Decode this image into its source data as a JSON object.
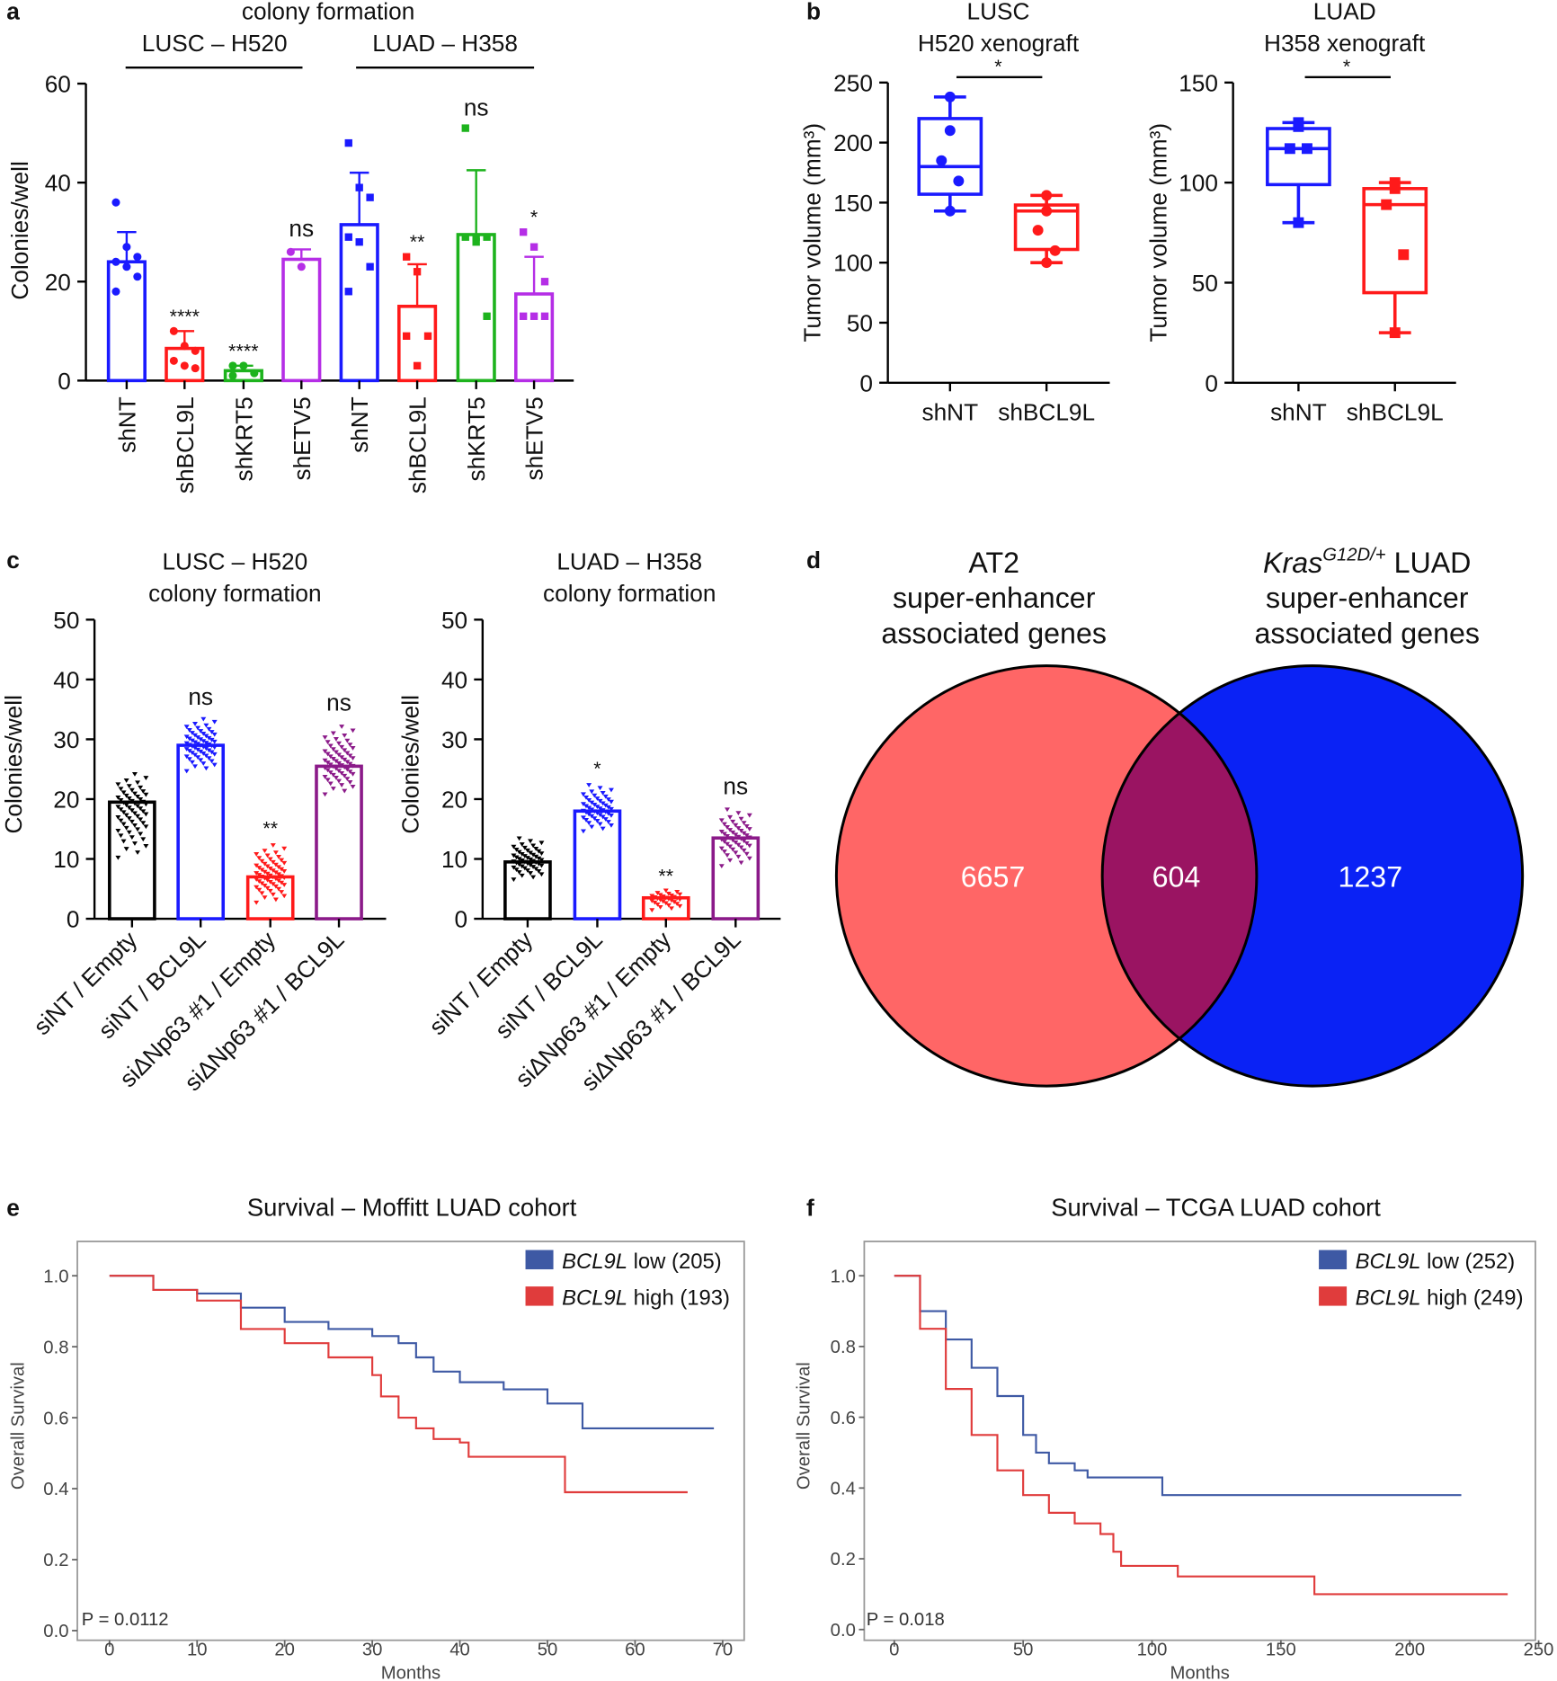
{
  "panel_labels": {
    "a": "a",
    "b": "b",
    "c": "c",
    "d": "d",
    "e": "e",
    "f": "f"
  },
  "colors": {
    "blue": "#1a1aff",
    "red": "#ff1a1a",
    "green": "#1db31d",
    "violet": "#b52ee6",
    "black": "#000000",
    "purple": "#8b1a89",
    "venn_left": "#ff6666",
    "venn_right": "#0a22f5",
    "venn_overlap": "#9a1462",
    "km_low": "#3e59a4",
    "km_high": "#e03c3c"
  },
  "chart_data": [
    {
      "panel": "a",
      "type": "bar",
      "title": "colony formation",
      "groups": [
        "LUSC – H520",
        "LUAD – H358"
      ],
      "ylabel": "Colonies/well",
      "ylim": [
        0,
        60
      ],
      "yticks": [
        0,
        20,
        40,
        60
      ],
      "categories": [
        "shNT",
        "shBCL9L",
        "shKRT5",
        "shETV5",
        "shNT",
        "shBCL9L",
        "shKRT5",
        "shETV5"
      ],
      "values": [
        24,
        6.5,
        2,
        24.5,
        31.5,
        15,
        29.5,
        17.5
      ],
      "error_upper": [
        30,
        10,
        3,
        26.5,
        42,
        23.5,
        42.5,
        25
      ],
      "significance": [
        "",
        "****",
        "****",
        "ns",
        "",
        "**",
        "ns",
        "*"
      ],
      "colors": [
        "#1a1aff",
        "#ff1a1a",
        "#1db31d",
        "#b52ee6",
        "#1a1aff",
        "#ff1a1a",
        "#1db31d",
        "#b52ee6"
      ],
      "points": [
        [
          36,
          27,
          25,
          24,
          23,
          21,
          18
        ],
        [
          10,
          7,
          6,
          4,
          3,
          2.5
        ],
        [
          3,
          3,
          1.5,
          1
        ],
        [
          26,
          23
        ],
        [
          48,
          39,
          37,
          29,
          28,
          23,
          18
        ],
        [
          25,
          22,
          9,
          9,
          3
        ],
        [
          51,
          29,
          29,
          29,
          28,
          13
        ],
        [
          30,
          27,
          20,
          13,
          13,
          13
        ]
      ]
    },
    {
      "panel": "b",
      "type": "box",
      "title_lines": [
        "LUSC",
        "H520 xenograft"
      ],
      "ylabel": "Tumor volume (mm³)",
      "ylim": [
        0,
        250
      ],
      "yticks": [
        0,
        50,
        100,
        150,
        200,
        250
      ],
      "categories": [
        "shNT",
        "shBCL9L"
      ],
      "significance": "*",
      "colors": [
        "#1a1aff",
        "#ff1a1a"
      ],
      "marker": "circle",
      "boxes": [
        {
          "min": 143,
          "q1": 157,
          "median": 180,
          "q3": 220,
          "max": 238,
          "points": [
            238,
            210,
            185,
            168,
            143
          ]
        },
        {
          "min": 100,
          "q1": 111,
          "median": 143,
          "q3": 148,
          "max": 156,
          "points": [
            156,
            143,
            127,
            110,
            100
          ]
        }
      ]
    },
    {
      "panel": "b",
      "type": "box",
      "title_lines": [
        "LUAD",
        "H358 xenograft"
      ],
      "ylabel": "Tumor volume (mm³)",
      "ylim": [
        0,
        150
      ],
      "yticks": [
        0,
        50,
        100,
        150
      ],
      "categories": [
        "shNT",
        "shBCL9L"
      ],
      "significance": "*",
      "colors": [
        "#1a1aff",
        "#ff1a1a"
      ],
      "marker": "square",
      "boxes": [
        {
          "min": 80,
          "q1": 99,
          "median": 117,
          "q3": 127,
          "max": 130,
          "points": [
            130,
            128,
            117,
            117,
            80
          ]
        },
        {
          "min": 25,
          "q1": 45,
          "median": 89,
          "q3": 97,
          "max": 100,
          "points": [
            100,
            97,
            89,
            64,
            25
          ]
        }
      ]
    },
    {
      "panel": "c",
      "type": "bar",
      "title_lines": [
        "LUSC – H520",
        "colony formation"
      ],
      "ylabel": "Colonies/well",
      "ylim": [
        0,
        50
      ],
      "yticks": [
        0,
        10,
        20,
        30,
        40,
        50
      ],
      "categories": [
        "siNT / Empty",
        "siNT / BCL9L",
        "siΔNp63 #1 / Empty",
        "siΔNp63 #1 / BCL9L"
      ],
      "values": [
        19.5,
        29,
        7,
        25.5
      ],
      "significance": [
        "",
        "ns",
        "**",
        "ns"
      ],
      "colors": [
        "#000000",
        "#1a1aff",
        "#ff1a1a",
        "#8b1a89"
      ],
      "points_summary": [
        {
          "n": 60,
          "min": 9,
          "max": 25
        },
        {
          "n": 60,
          "min": 24,
          "max": 34
        },
        {
          "n": 60,
          "min": 2,
          "max": 13
        },
        {
          "n": 60,
          "min": 20,
          "max": 33
        }
      ]
    },
    {
      "panel": "c",
      "type": "bar",
      "title_lines": [
        "LUAD – H358",
        "colony formation"
      ],
      "ylabel": "Colonies/well",
      "ylim": [
        0,
        50
      ],
      "yticks": [
        0,
        10,
        20,
        30,
        40,
        50
      ],
      "categories": [
        "siNT / Empty",
        "siNT / BCL9L",
        "siΔNp63 #1 / Empty",
        "siΔNp63 #1 / BCL9L"
      ],
      "values": [
        9.5,
        18,
        3.5,
        13.5
      ],
      "significance": [
        "",
        "*",
        "**",
        "ns"
      ],
      "colors": [
        "#000000",
        "#1a1aff",
        "#ff1a1a",
        "#8b1a89"
      ],
      "points_summary": [
        {
          "n": 50,
          "min": 6,
          "max": 14
        },
        {
          "n": 50,
          "min": 14,
          "max": 23
        },
        {
          "n": 30,
          "min": 1,
          "max": 5
        },
        {
          "n": 50,
          "min": 8,
          "max": 19
        }
      ]
    },
    {
      "panel": "d",
      "type": "venn",
      "left": {
        "title_lines": [
          "AT2",
          "super-enhancer",
          "associated genes"
        ],
        "count": "6657"
      },
      "right": {
        "title_gene": "Kras",
        "title_superscript": "G12D/+",
        "title_suffix": " LUAD",
        "title_lines": [
          "super-enhancer",
          "associated genes"
        ],
        "count": "1237"
      },
      "overlap": {
        "count": "604"
      }
    },
    {
      "panel": "e",
      "type": "line",
      "title": "Survival – Moffitt LUAD cohort",
      "xlabel": "Months",
      "ylabel": "Overall Survival",
      "xlim": [
        0,
        70
      ],
      "xticks": [
        0,
        10,
        20,
        30,
        40,
        50,
        60,
        70
      ],
      "ylim": [
        0,
        1
      ],
      "yticks": [
        "0.0",
        "0.2",
        "0.4",
        "0.6",
        "0.8",
        "1.0"
      ],
      "pvalue": "P = 0.0112",
      "legend": "top-right",
      "series": [
        {
          "gene": "BCL9L",
          "name": " low (205)",
          "color": "#3e59a4",
          "steps": [
            [
              0,
              1
            ],
            [
              5,
              0.96
            ],
            [
              10,
              0.95
            ],
            [
              15,
              0.91
            ],
            [
              20,
              0.87
            ],
            [
              25,
              0.85
            ],
            [
              30,
              0.83
            ],
            [
              33,
              0.81
            ],
            [
              35,
              0.77
            ],
            [
              37,
              0.73
            ],
            [
              40,
              0.7
            ],
            [
              45,
              0.68
            ],
            [
              50,
              0.64
            ],
            [
              54,
              0.57
            ],
            [
              69,
              0.57
            ]
          ]
        },
        {
          "gene": "BCL9L",
          "name": " high (193)",
          "color": "#e03c3c",
          "steps": [
            [
              0,
              1
            ],
            [
              5,
              0.96
            ],
            [
              10,
              0.93
            ],
            [
              15,
              0.85
            ],
            [
              20,
              0.81
            ],
            [
              25,
              0.77
            ],
            [
              30,
              0.72
            ],
            [
              31,
              0.66
            ],
            [
              33,
              0.6
            ],
            [
              35,
              0.57
            ],
            [
              37,
              0.54
            ],
            [
              40,
              0.53
            ],
            [
              41,
              0.49
            ],
            [
              52,
              0.39
            ],
            [
              66,
              0.39
            ]
          ]
        }
      ]
    },
    {
      "panel": "f",
      "type": "line",
      "title": "Survival – TCGA LUAD cohort",
      "xlabel": "Months",
      "ylabel": "Overall Survival",
      "xlim": [
        0,
        250
      ],
      "xticks": [
        0,
        50,
        100,
        150,
        200,
        250
      ],
      "ylim": [
        0,
        1
      ],
      "yticks": [
        "0.0",
        "0.2",
        "0.4",
        "0.6",
        "0.8",
        "1.0"
      ],
      "pvalue": "P = 0.018",
      "legend": "top-right",
      "series": [
        {
          "gene": "BCL9L",
          "name": " low (252)",
          "color": "#3e59a4",
          "steps": [
            [
              0,
              1
            ],
            [
              10,
              0.9
            ],
            [
              20,
              0.82
            ],
            [
              30,
              0.74
            ],
            [
              40,
              0.66
            ],
            [
              50,
              0.55
            ],
            [
              55,
              0.5
            ],
            [
              60,
              0.47
            ],
            [
              70,
              0.45
            ],
            [
              75,
              0.43
            ],
            [
              100,
              0.43
            ],
            [
              104,
              0.38
            ],
            [
              220,
              0.38
            ]
          ]
        },
        {
          "gene": "BCL9L",
          "name": " high (249)",
          "color": "#e03c3c",
          "steps": [
            [
              0,
              1
            ],
            [
              10,
              0.85
            ],
            [
              20,
              0.68
            ],
            [
              30,
              0.55
            ],
            [
              40,
              0.45
            ],
            [
              50,
              0.38
            ],
            [
              60,
              0.33
            ],
            [
              70,
              0.3
            ],
            [
              80,
              0.27
            ],
            [
              85,
              0.22
            ],
            [
              88,
              0.18
            ],
            [
              110,
              0.15
            ],
            [
              163,
              0.1
            ],
            [
              238,
              0.1
            ]
          ]
        }
      ]
    }
  ]
}
